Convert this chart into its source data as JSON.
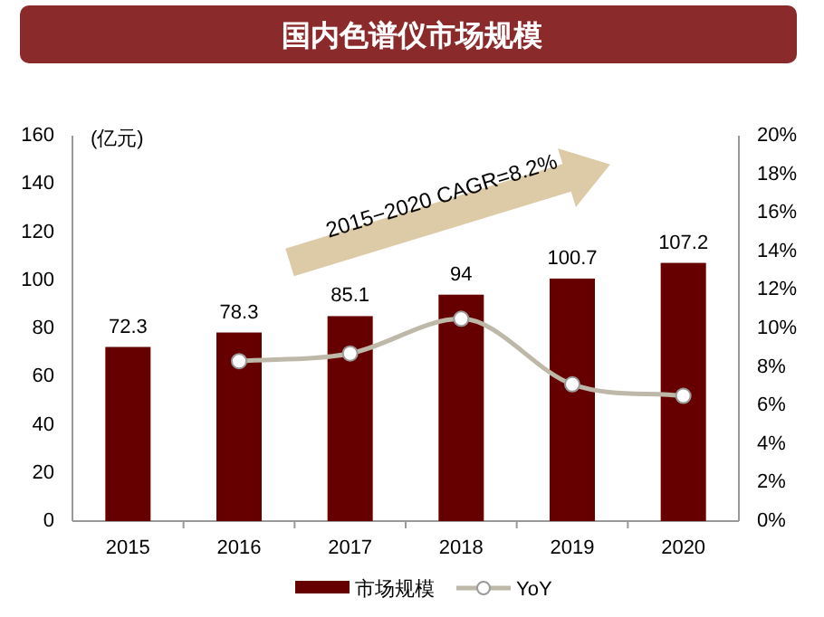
{
  "chart_data": {
    "type": "bar",
    "title": "国内色谱仪市场规模",
    "ylabel": "(亿元)",
    "categories": [
      "2015",
      "2016",
      "2017",
      "2018",
      "2019",
      "2020"
    ],
    "series": [
      {
        "name": "市场规模",
        "color": "#660000",
        "values": [
          72.3,
          78.3,
          85.1,
          94,
          100.7,
          107.2
        ],
        "value_labels": [
          "72.3",
          "78.3",
          "85.1",
          "94",
          "100.7",
          "107.2"
        ]
      },
      {
        "name": "YoY",
        "type": "line",
        "axis": "y2",
        "marker": "circle",
        "color": "#bdb8a8",
        "values": [
          null,
          8.3,
          8.7,
          10.5,
          7.1,
          6.5
        ]
      }
    ],
    "ylim": [
      0,
      160
    ],
    "yticks": [
      0,
      20,
      40,
      60,
      80,
      100,
      120,
      140,
      160
    ],
    "y2lim": [
      0,
      20
    ],
    "y2ticks": [
      {
        "value": 0,
        "label": "0%"
      },
      {
        "value": 2,
        "label": "2%"
      },
      {
        "value": 4,
        "label": "4%"
      },
      {
        "value": 6,
        "label": "6%"
      },
      {
        "value": 8,
        "label": "8%"
      },
      {
        "value": 10,
        "label": "10%"
      },
      {
        "value": 12,
        "label": "12%"
      },
      {
        "value": 14,
        "label": "14%"
      },
      {
        "value": 16,
        "label": "16%"
      },
      {
        "value": 18,
        "label": "18%"
      },
      {
        "value": 20,
        "label": "20%"
      }
    ],
    "legend": "bottom",
    "grid": false,
    "annotations": [
      "2015−2020 CAGR=8.2%"
    ]
  }
}
